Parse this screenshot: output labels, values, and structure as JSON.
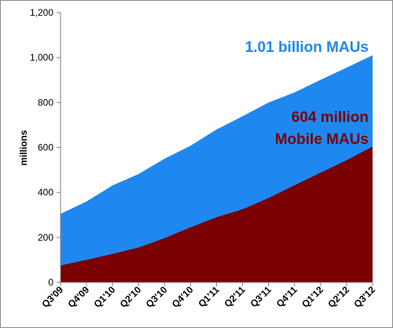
{
  "chart_data": {
    "type": "area",
    "categories": [
      "Q3'09",
      "Q4'09",
      "Q1'10",
      "Q2'10",
      "Q3'10",
      "Q4'10",
      "Q1'11",
      "Q2'11",
      "Q3'11",
      "Q4'11",
      "Q1'12",
      "Q2'12",
      "Q3'12"
    ],
    "series": [
      {
        "name": "",
        "color": "#1f88f0",
        "values": [
          305,
          360,
          431,
          482,
          550,
          608,
          680,
          739,
          800,
          845,
          901,
          955,
          1010
        ]
      },
      {
        "name": "",
        "color": "#7b0000",
        "values": [
          75,
          100,
          127,
          155,
          197,
          245,
          290,
          325,
          375,
          432,
          488,
          543,
          604
        ]
      }
    ],
    "ylabel": "millions",
    "ylim": [
      0,
      1200
    ],
    "yticks": [
      "0",
      "200",
      "400",
      "600",
      "800",
      "1,000",
      "1,200"
    ],
    "grid": false,
    "annotations": {
      "total": "1.01 billion MAUs",
      "mobile_line1": "604 million",
      "mobile_line2": "Mobile MAUs"
    }
  }
}
